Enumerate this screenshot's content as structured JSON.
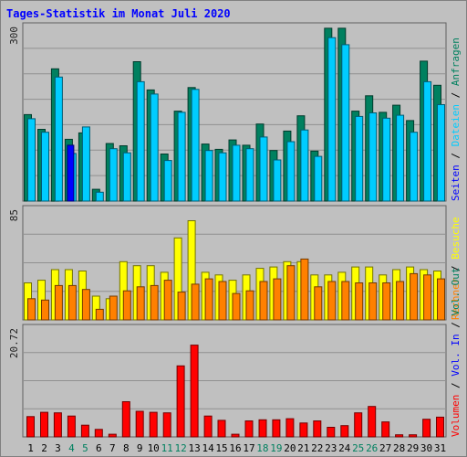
{
  "title": "Tages-Statistik im Monat Juli 2020",
  "colors": {
    "anfragen": "#00805f",
    "dateien": "#00ccff",
    "seiten": "#0000ff",
    "besuche": "#ffff00",
    "rechner": "#ff8000",
    "volumen": "#ff0000",
    "text_dark": "#000000",
    "weekend": "#00805f",
    "legend_blue": "#0000ff"
  },
  "chart_data": [
    {
      "type": "bar",
      "name": "hits-panel",
      "ytick": "300",
      "ylim": [
        0,
        300
      ],
      "categories": [
        "1",
        "2",
        "3",
        "4",
        "5",
        "6",
        "7",
        "8",
        "9",
        "10",
        "11",
        "12",
        "13",
        "14",
        "15",
        "16",
        "17",
        "18",
        "19",
        "20",
        "21",
        "22",
        "23",
        "24",
        "25",
        "26",
        "27",
        "28",
        "29",
        "30",
        "31"
      ],
      "weekend_days": [
        "4",
        "5",
        "11",
        "12",
        "18",
        "19",
        "25",
        "26"
      ],
      "series": [
        {
          "name": "Anfragen",
          "values": [
            147,
            122,
            225,
            105,
            116,
            20,
            98,
            94,
            237,
            189,
            80,
            153,
            193,
            97,
            88,
            104,
            95,
            131,
            86,
            119,
            145,
            85,
            294,
            294,
            153,
            179,
            151,
            163,
            137,
            238,
            197
          ]
        },
        {
          "name": "Dateien",
          "values": [
            140,
            117,
            211,
            81,
            126,
            15,
            89,
            82,
            203,
            182,
            69,
            151,
            190,
            86,
            82,
            95,
            89,
            109,
            70,
            101,
            121,
            76,
            278,
            266,
            144,
            150,
            141,
            146,
            117,
            203,
            164
          ]
        },
        {
          "name": "Seiten",
          "values": [
            0,
            0,
            0,
            95,
            0,
            0,
            0,
            0,
            0,
            0,
            0,
            0,
            0,
            0,
            0,
            0,
            0,
            0,
            0,
            0,
            0,
            0,
            0,
            0,
            0,
            0,
            0,
            0,
            0,
            0,
            0
          ]
        }
      ]
    },
    {
      "type": "bar",
      "name": "visits-panel",
      "ytick": "85",
      "ylim": [
        0,
        85
      ],
      "series": [
        {
          "name": "Besuche",
          "values": [
            28,
            30,
            38,
            38,
            37,
            18,
            16,
            44,
            41,
            41,
            36,
            62,
            75,
            36,
            34,
            30,
            34,
            39,
            40,
            44,
            44,
            34,
            34,
            36,
            40,
            40,
            34,
            38,
            40,
            38,
            37
          ]
        },
        {
          "name": "Rechner",
          "values": [
            16,
            15,
            26,
            26,
            23,
            8,
            18,
            22,
            25,
            26,
            30,
            21,
            27,
            31,
            29,
            20,
            22,
            29,
            31,
            41,
            46,
            25,
            29,
            29,
            28,
            28,
            28,
            29,
            35,
            34,
            31
          ]
        }
      ]
    },
    {
      "type": "bar",
      "name": "volume-panel",
      "ytick": "20.72",
      "ylim": [
        0,
        20.72
      ],
      "series": [
        {
          "name": "Volumen",
          "values": [
            3.8,
            4.6,
            4.5,
            3.9,
            2.2,
            1.4,
            0.5,
            6.6,
            4.8,
            4.6,
            4.5,
            13.3,
            17.2,
            3.9,
            3.1,
            0.5,
            3.0,
            3.2,
            3.2,
            3.4,
            2.6,
            3.0,
            1.8,
            2.1,
            4.5,
            5.7,
            2.8,
            0.4,
            0.4,
            3.3,
            3.7
          ]
        }
      ]
    }
  ],
  "legend": {
    "anfragen": "Anfragen",
    "dateien": "Dateien",
    "seiten": "Seiten",
    "besuche": "Besuche",
    "rechner": "Rechner",
    "vol_out": "Vol. Out",
    "vol_in": "Vol. In",
    "volumen": "Volumen",
    "separator": " / "
  }
}
